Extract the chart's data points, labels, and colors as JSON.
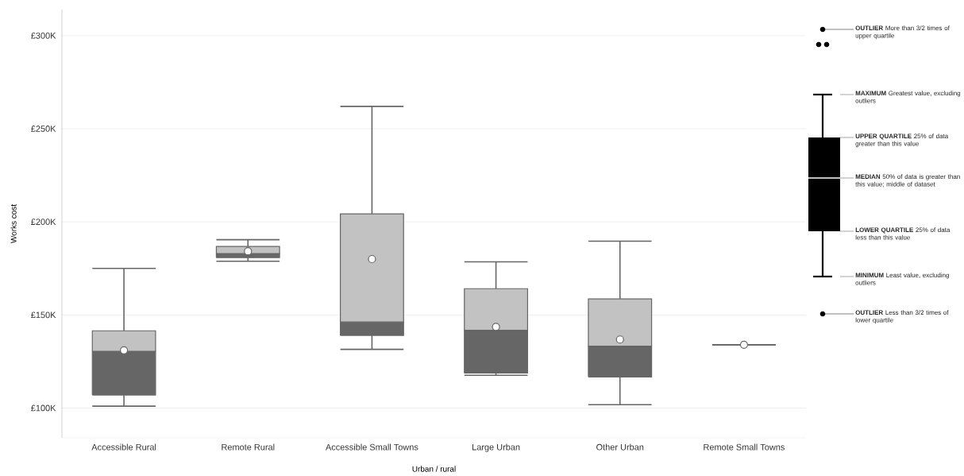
{
  "chart_data": {
    "type": "box",
    "xlabel": "Urban / rural",
    "ylabel": "Works cost",
    "categories": [
      "Accessible Rural",
      "Remote Rural",
      "Accessible Small Towns",
      "Large Urban",
      "Other Urban",
      "Remote Small Towns"
    ],
    "series": [
      {
        "color": "#666666",
        "boxes": [
          {
            "low": 101,
            "q1": 107,
            "median": 130.5,
            "q3": 141.5,
            "high": 175,
            "mean": 131
          },
          {
            "low": 178.8,
            "q1": 180.8,
            "median": 183,
            "q3": 186.8,
            "high": 190.4,
            "mean": 184.2
          },
          {
            "low": 131.5,
            "q1": 139,
            "median": 146.2,
            "q3": 204.3,
            "high": 262,
            "mean": 180
          },
          {
            "low": 117.6,
            "q1": 118.8,
            "median": 141.8,
            "q3": 164.1,
            "high": 178.5,
            "mean": 143.6
          },
          {
            "low": 101.8,
            "q1": 116.7,
            "median": 133.2,
            "q3": 158.6,
            "high": 189.6,
            "mean": 136.8
          },
          {
            "low": 134,
            "q1": 134,
            "median": 134,
            "q3": 134,
            "high": 134,
            "mean": 134
          }
        ]
      }
    ],
    "ylim": [
      84,
      314
    ],
    "yticks": [
      {
        "value": 100,
        "label": "£100K"
      },
      {
        "value": 150,
        "label": "£150K"
      },
      {
        "value": 200,
        "label": "£200K"
      },
      {
        "value": 250,
        "label": "£250K"
      },
      {
        "value": 300,
        "label": "£300K"
      }
    ],
    "grid": "y",
    "annotations": [
      "**OUTLIER** More than 3/2 times of upper quartile",
      "**MAXIMUM** Greatest value, excluding outliers",
      "**UPPER QUARTILE** 25% of data greater than this value",
      "**MEDIAN** 50% of data is greater than this value; middle of dataset",
      "**LOWER QUARTILE** 25% of data less than this value",
      "**MINIMUM** Least value, excluding outliers",
      "**OUTLIER** Less than 3/2 times of lower quartile"
    ]
  }
}
